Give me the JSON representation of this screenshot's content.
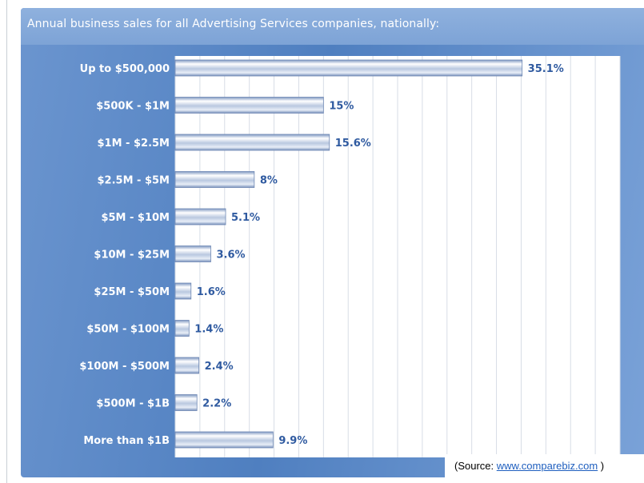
{
  "chart_data": {
    "type": "bar",
    "orientation": "horizontal",
    "title": "Annual business sales for all Advertising Services companies, nationally:",
    "categories": [
      "Up to $500,000",
      "$500K - $1M",
      "$1M - $2.5M",
      "$2.5M - $5M",
      "$5M - $10M",
      "$10M - $25M",
      "$25M - $50M",
      "$50M - $100M",
      "$100M - $500M",
      "$500M - $1B",
      "More than $1B"
    ],
    "values": [
      35.1,
      15,
      15.6,
      8,
      5.1,
      3.6,
      1.6,
      1.4,
      2.4,
      2.2,
      9.9
    ],
    "value_labels": [
      "35.1%",
      "15%",
      "15.6%",
      "8%",
      "5.1%",
      "3.6%",
      "1.6%",
      "1.4%",
      "2.4%",
      "2.2%",
      "9.9%"
    ],
    "xlim": [
      0,
      45
    ],
    "grid": true,
    "colors": {
      "bar": "#9fb5d6",
      "bar_highlight": "#ffffff",
      "label": "#2f5aa0",
      "panel": "#5a88c6"
    }
  },
  "source": {
    "prefix": "(Source: ",
    "link": "www.comparebiz.com",
    "suffix": " )"
  }
}
